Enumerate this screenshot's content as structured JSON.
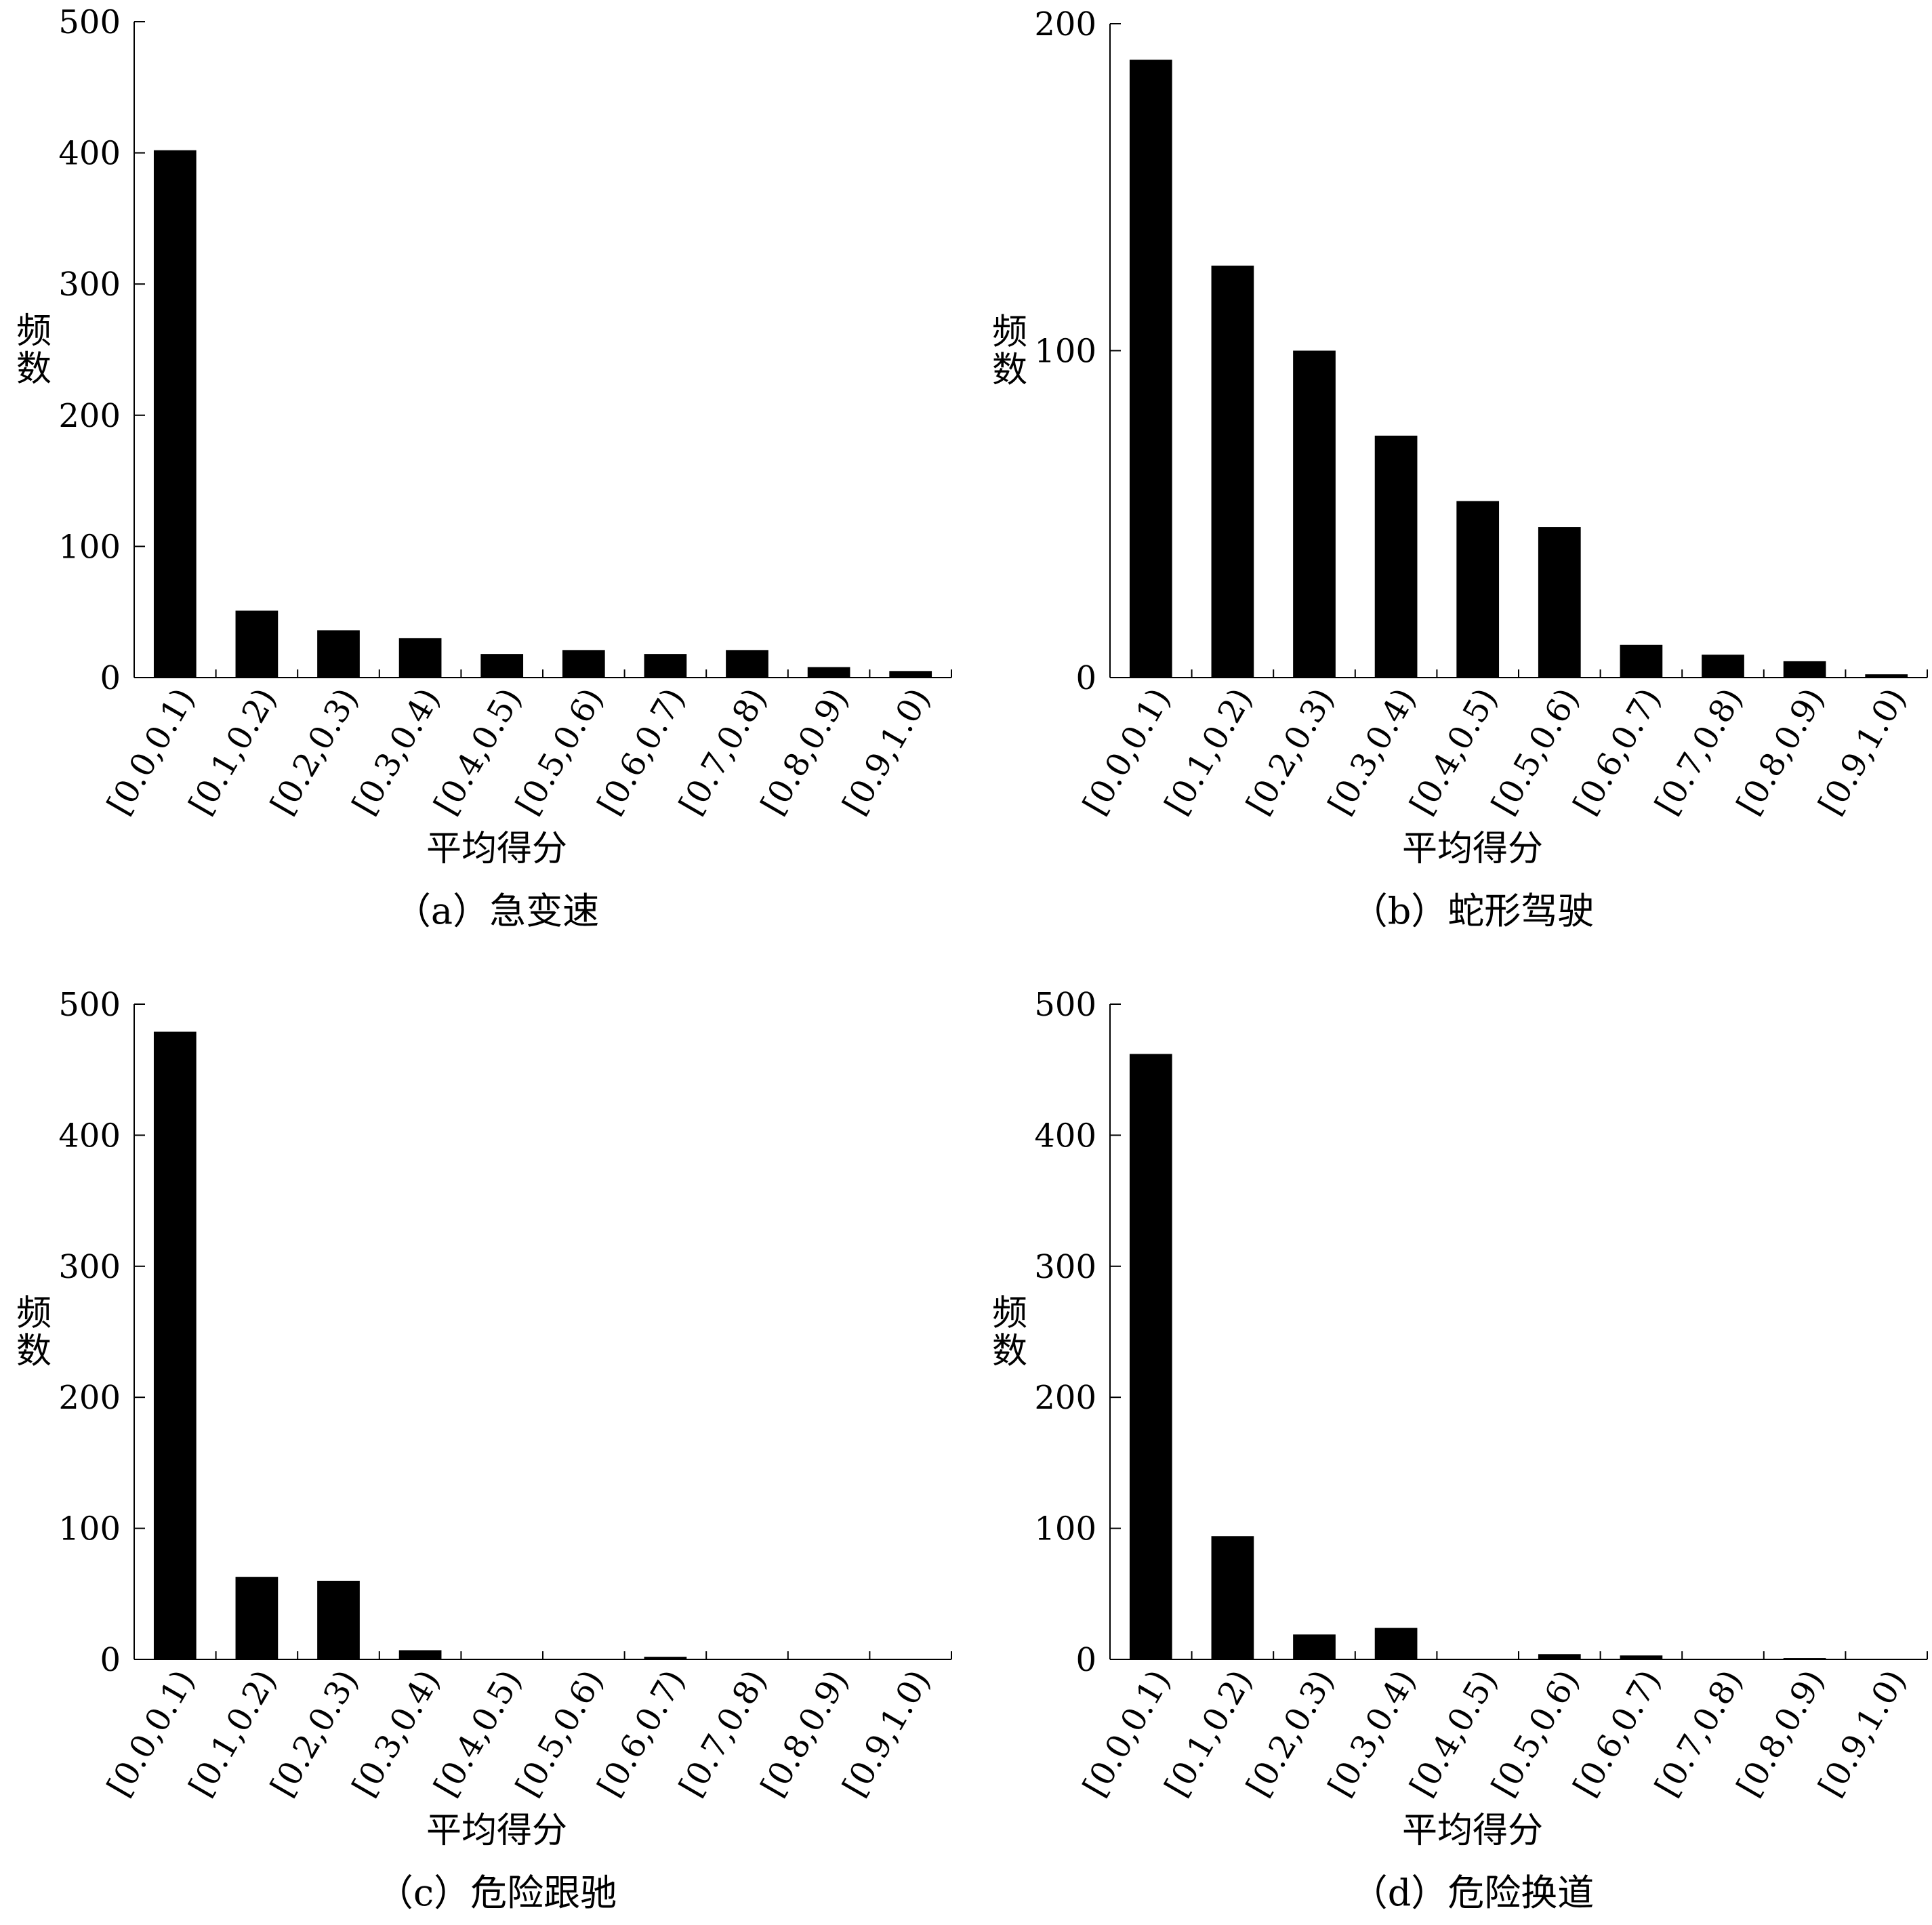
{
  "chart_data": [
    {
      "type": "bar",
      "caption": "（a）急变速",
      "xlabel": "平均得分",
      "ylabel": "频数",
      "ylim": [
        0,
        500
      ],
      "yticks": [
        0,
        100,
        200,
        300,
        400,
        500
      ],
      "categories": [
        "[0.0,0.1)",
        "[0.1,0.2)",
        "[0.2,0.3)",
        "[0.3,0.4)",
        "[0.4,0.5)",
        "[0.5,0.6)",
        "[0.6,0.7)",
        "[0.7,0.8)",
        "[0.8,0.9)",
        "[0.9,1.0)"
      ],
      "values": [
        402,
        51,
        36,
        30,
        18,
        21,
        18,
        21,
        8,
        5
      ]
    },
    {
      "type": "bar",
      "caption": "（b）蛇形驾驶",
      "xlabel": "平均得分",
      "ylabel": "频数",
      "ylim": [
        0,
        200
      ],
      "yticks": [
        0,
        100,
        200
      ],
      "categories": [
        "[0.0,0.1)",
        "[0.1,0.2)",
        "[0.2,0.3)",
        "[0.3,0.4)",
        "[0.4,0.5)",
        "[0.5,0.6)",
        "[0.6,0.7)",
        "[0.7,0.8)",
        "[0.8,0.9)",
        "[0.9,1.0)"
      ],
      "values": [
        189,
        126,
        100,
        74,
        54,
        46,
        10,
        7,
        5,
        1
      ]
    },
    {
      "type": "bar",
      "caption": "（c）危险跟驰",
      "xlabel": "平均得分",
      "ylabel": "频数",
      "ylim": [
        0,
        500
      ],
      "yticks": [
        0,
        100,
        200,
        300,
        400,
        500
      ],
      "categories": [
        "[0.0,0.1)",
        "[0.1,0.2)",
        "[0.2,0.3)",
        "[0.3,0.4)",
        "[0.4,0.5)",
        "[0.5,0.6)",
        "[0.6,0.7)",
        "[0.7,0.8)",
        "[0.8,0.9)",
        "[0.9,1.0)"
      ],
      "values": [
        479,
        63,
        60,
        7,
        0,
        0,
        2,
        0,
        0,
        0
      ]
    },
    {
      "type": "bar",
      "caption": "（d）危险换道",
      "xlabel": "平均得分",
      "ylabel": "频数",
      "ylim": [
        0,
        500
      ],
      "yticks": [
        0,
        100,
        200,
        300,
        400,
        500
      ],
      "categories": [
        "[0.0,0.1)",
        "[0.1,0.2)",
        "[0.2,0.3)",
        "[0.3,0.4)",
        "[0.4,0.5)",
        "[0.5,0.6)",
        "[0.6,0.7)",
        "[0.7,0.8)",
        "[0.8,0.9)",
        "[0.9,1.0)"
      ],
      "values": [
        462,
        94,
        19,
        24,
        0,
        4,
        3,
        0,
        1,
        0
      ]
    }
  ]
}
